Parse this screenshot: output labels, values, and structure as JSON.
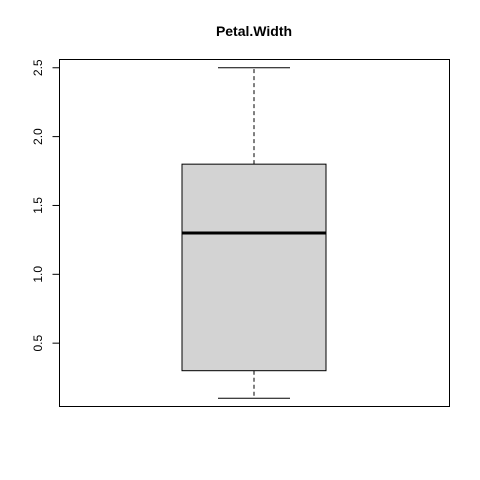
{
  "chart_data": {
    "type": "box",
    "title": "Petal.Width",
    "xlabel": "",
    "ylabel": "",
    "ylim": [
      0.04,
      2.56
    ],
    "yticks": [
      0.5,
      1.0,
      1.5,
      2.0,
      2.5
    ],
    "ytick_labels": [
      "0.5",
      "1.0",
      "1.5",
      "2.0",
      "2.5"
    ],
    "box": {
      "min": 0.1,
      "q1": 0.3,
      "median": 1.3,
      "q3": 1.8,
      "max": 2.5
    },
    "grid": false,
    "colors": {
      "box_fill": "#d3d3d3",
      "stroke": "#000000"
    }
  }
}
